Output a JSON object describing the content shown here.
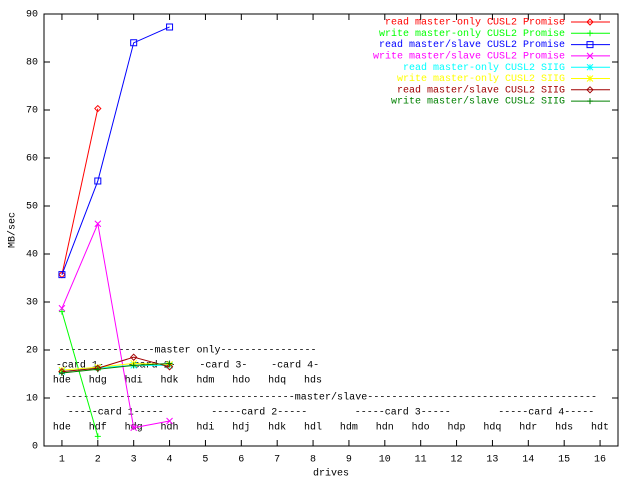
{
  "chart_data": {
    "type": "line",
    "x_label": "drives",
    "y_label": "MB/sec",
    "xlim": [
      0.5,
      16.5
    ],
    "ylim": [
      0,
      90
    ],
    "xticks": [
      1,
      2,
      3,
      4,
      5,
      6,
      7,
      8,
      9,
      10,
      11,
      12,
      13,
      14,
      15,
      16
    ],
    "yticks": [
      0,
      10,
      20,
      30,
      40,
      50,
      60,
      70,
      80,
      90
    ],
    "legend": "top-right",
    "x": [
      1,
      2,
      3,
      4
    ],
    "series": [
      {
        "name": "read master-only CUSL2 Promise",
        "color": "#ff0000",
        "marker": "diamond",
        "values": [
          35.7,
          70.3,
          null,
          null
        ]
      },
      {
        "name": "write master-only CUSL2 Promise",
        "color": "#00ff00",
        "marker": "plus",
        "values": [
          28,
          2,
          null,
          null
        ]
      },
      {
        "name": "read master/slave CUSL2 Promise",
        "color": "#0000ff",
        "marker": "square",
        "values": [
          35.7,
          55.2,
          84,
          87.3
        ]
      },
      {
        "name": "write master/slave CUSL2 Promise",
        "color": "#ff00ff",
        "marker": "x",
        "values": [
          28.7,
          46.3,
          3.8,
          5.2
        ]
      },
      {
        "name": "read master-only CUSL2 SIIG",
        "color": "#00ffff",
        "marker": "star",
        "values": [
          15.5,
          16.3,
          16.8,
          16.8
        ]
      },
      {
        "name": "write master-only CUSL2 SIIG",
        "color": "#ffff00",
        "marker": "star",
        "values": [
          15.8,
          16.4,
          17.2,
          17
        ]
      },
      {
        "name": "read master/slave CUSL2 SIIG",
        "color": "#a00000",
        "marker": "diamond",
        "values": [
          15.5,
          16.2,
          18.5,
          16.5
        ]
      },
      {
        "name": "write master/slave CUSL2 SIIG",
        "color": "#008000",
        "marker": "plus",
        "values": [
          15.2,
          16,
          16.8,
          17.2
        ]
      }
    ],
    "annotations": {
      "master_only": "----------------master only----------------",
      "master_only_cards": [
        "-card 1-",
        "-card 2-",
        "-card 3-",
        "-card 4-"
      ],
      "master_only_drives": [
        "hde",
        "hdg",
        "hdi",
        "hdk",
        "hdm",
        "hdo",
        "hdq",
        "hds"
      ],
      "master_slave": "--------------------------------------master/slave--------------------------------------",
      "master_slave_cards": [
        "-----card 1-----",
        "-----card 2-----",
        "-----card 3-----",
        "-----card 4-----"
      ],
      "master_slave_drives": [
        "hde",
        "hdf",
        "hdg",
        "hdh",
        "hdi",
        "hdj",
        "hdk",
        "hdl",
        "hdm",
        "hdn",
        "hdo",
        "hdp",
        "hdq",
        "hdr",
        "hds",
        "hdt"
      ]
    }
  }
}
